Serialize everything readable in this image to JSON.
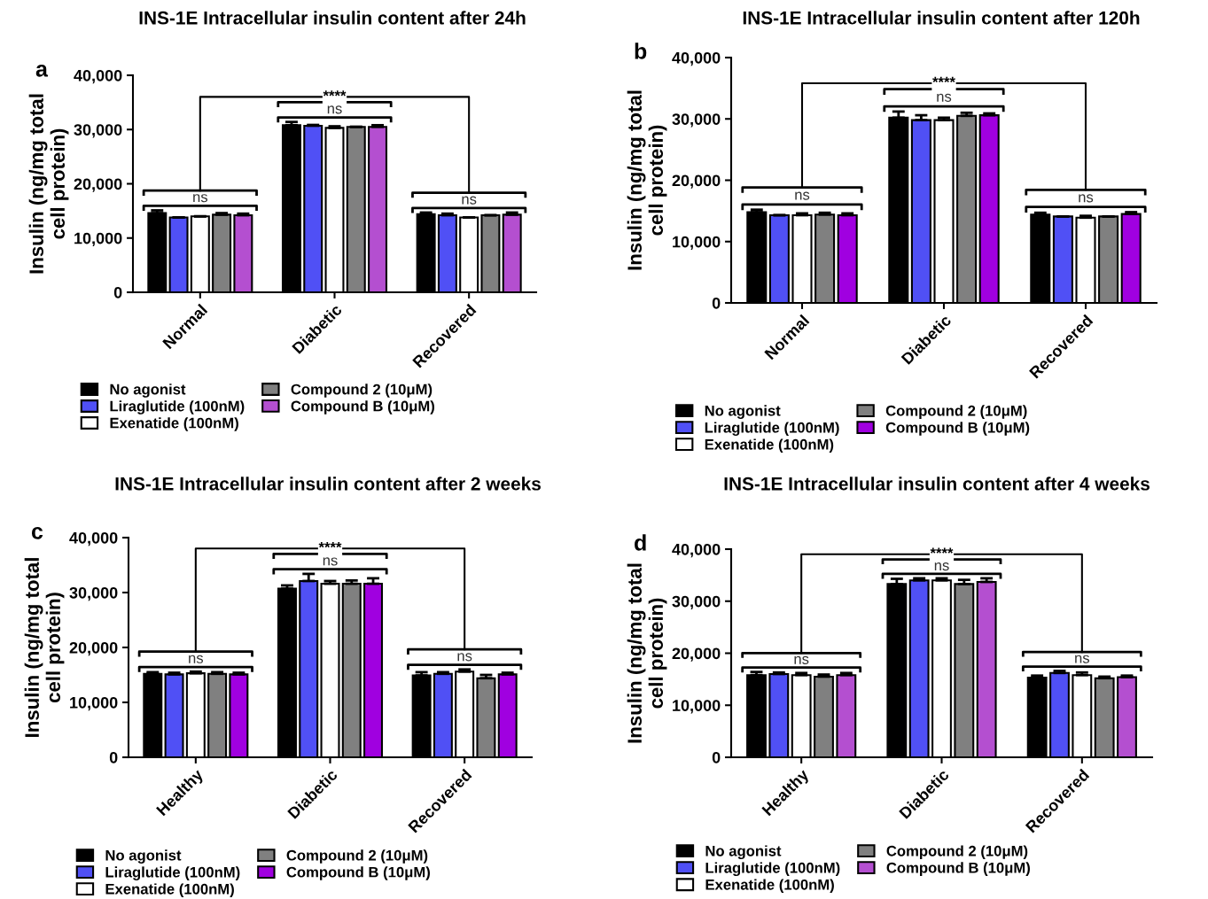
{
  "chart_data": [
    {
      "type": "bar",
      "title": "INS-1E Intracellular insulin content after 24h",
      "ylabel": "Insulin (ng/mg total\ncell protein)",
      "categories": [
        "Normal",
        "Diabetic",
        "Recovered"
      ],
      "ylim": [
        0,
        40000
      ],
      "yticks": [
        0,
        {
          "value": 10000,
          "label": "10,000"
        },
        {
          "value": 20000,
          "label": "20,000"
        },
        {
          "value": 30000,
          "label": "30,000"
        },
        {
          "value": 40000,
          "label": "40,000"
        }
      ],
      "legend": "bottom",
      "series": [
        {
          "name": "No agonist",
          "color": "#000000",
          "values": [
            14600,
            30800,
            14400
          ],
          "errors": [
            500,
            600,
            300
          ]
        },
        {
          "name": "Liraglutide (100nM)",
          "color": "#5050f5",
          "values": [
            13800,
            30700,
            14200
          ],
          "errors": [
            null,
            150,
            300
          ]
        },
        {
          "name": "Exenatide (100nM)",
          "color": "#ffffff",
          "values": [
            14000,
            30300,
            13800
          ],
          "errors": [
            null,
            300,
            null
          ]
        },
        {
          "name": "Compound 2 (10μM)",
          "color": "#808080",
          "values": [
            14300,
            30500,
            14200
          ],
          "errors": [
            300,
            null,
            null
          ]
        },
        {
          "name": "Compound B (10μM)",
          "color": "#b44fd0",
          "values": [
            14200,
            30500,
            14300
          ],
          "errors": [
            300,
            300,
            400
          ]
        }
      ],
      "annotations": [
        "a",
        "ns",
        "ns",
        "ns",
        "****"
      ]
    },
    {
      "type": "bar",
      "title": "INS-1E Intracellular insulin content after 120h",
      "ylabel": "Insulin (ng/mg total\ncell protein)",
      "categories": [
        "Normal",
        "Diabetic",
        "Recovered"
      ],
      "ylim": [
        0,
        40000
      ],
      "yticks": [
        0,
        {
          "value": 10000,
          "label": "10,000"
        },
        {
          "value": 20000,
          "label": "20,000"
        },
        {
          "value": 30000,
          "label": "30,000"
        },
        {
          "value": 40000,
          "label": "40,000"
        }
      ],
      "legend": "bottom",
      "series": [
        {
          "name": "No agonist",
          "color": "#000000",
          "values": [
            14800,
            30200,
            14400
          ],
          "errors": [
            400,
            1000,
            300
          ]
        },
        {
          "name": "Liraglutide (100nM)",
          "color": "#5050f5",
          "values": [
            14300,
            29800,
            14100
          ],
          "errors": [
            null,
            800,
            null
          ]
        },
        {
          "name": "Exenatide (100nM)",
          "color": "#ffffff",
          "values": [
            14300,
            29800,
            13900
          ],
          "errors": [
            300,
            400,
            300
          ]
        },
        {
          "name": "Compound 2 (10μM)",
          "color": "#808080",
          "values": [
            14400,
            30500,
            14100
          ],
          "errors": [
            300,
            500,
            null
          ]
        },
        {
          "name": "Compound B (10μM)",
          "color": "#a000e0",
          "values": [
            14300,
            30600,
            14500
          ],
          "errors": [
            300,
            300,
            300
          ]
        }
      ],
      "annotations": [
        "b",
        "ns",
        "ns",
        "ns",
        "****"
      ]
    },
    {
      "type": "bar",
      "title": "INS-1E Intracellular insulin content after 2 weeks",
      "ylabel": "Insulin (ng/mg total\ncell protein)",
      "categories": [
        "Healthy",
        "Diabetic",
        "Recovered"
      ],
      "ylim": [
        0,
        40000
      ],
      "yticks": [
        0,
        {
          "value": 10000,
          "label": "10,000"
        },
        {
          "value": 20000,
          "label": "20,000"
        },
        {
          "value": 30000,
          "label": "30,000"
        },
        {
          "value": 40000,
          "label": "40,000"
        }
      ],
      "legend": "bottom",
      "series": [
        {
          "name": "No agonist",
          "color": "#000000",
          "values": [
            15200,
            30700,
            14900
          ],
          "errors": [
            300,
            600,
            600
          ]
        },
        {
          "name": "Liraglutide (100nM)",
          "color": "#5050f5",
          "values": [
            15100,
            32100,
            15200
          ],
          "errors": [
            300,
            1300,
            300
          ]
        },
        {
          "name": "Exenatide (100nM)",
          "color": "#ffffff",
          "values": [
            15300,
            31600,
            15600
          ],
          "errors": [
            300,
            500,
            400
          ]
        },
        {
          "name": "Compound 2 (10μM)",
          "color": "#808080",
          "values": [
            15200,
            31600,
            14400
          ],
          "errors": [
            300,
            600,
            600
          ]
        },
        {
          "name": "Compound B (10μM)",
          "color": "#a000e0",
          "values": [
            15100,
            31600,
            15100
          ],
          "errors": [
            300,
            1000,
            300
          ]
        }
      ],
      "annotations": [
        "c",
        "ns",
        "ns",
        "ns",
        "****"
      ]
    },
    {
      "type": "bar",
      "title": "INS-1E Intracellular insulin content after 4 weeks",
      "ylabel": "Insulin (ng/mg total\ncell protein)",
      "categories": [
        "Healthy",
        "Diabetic",
        "Recovered"
      ],
      "ylim": [
        0,
        40000
      ],
      "yticks": [
        0,
        {
          "value": 10000,
          "label": "10,000"
        },
        {
          "value": 20000,
          "label": "20,000"
        },
        {
          "value": 30000,
          "label": "30,000"
        },
        {
          "value": 40000,
          "label": "40,000"
        }
      ],
      "legend": "bottom",
      "series": [
        {
          "name": "No agonist",
          "color": "#000000",
          "values": [
            15800,
            33300,
            15300
          ],
          "errors": [
            600,
            1000,
            400
          ]
        },
        {
          "name": "Liraglutide (100nM)",
          "color": "#5050f5",
          "values": [
            16000,
            34000,
            16200
          ],
          "errors": [
            300,
            400,
            400
          ]
        },
        {
          "name": "Exenatide (100nM)",
          "color": "#ffffff",
          "values": [
            15800,
            34000,
            15800
          ],
          "errors": [
            400,
            400,
            500
          ]
        },
        {
          "name": "Compound 2 (10μM)",
          "color": "#808080",
          "values": [
            15500,
            33300,
            15200
          ],
          "errors": [
            400,
            800,
            300
          ]
        },
        {
          "name": "Compound B (10μM)",
          "color": "#b44fd0",
          "values": [
            15800,
            33700,
            15400
          ],
          "errors": [
            400,
            700,
            300
          ]
        }
      ],
      "annotations": [
        "d",
        "ns",
        "ns",
        "ns",
        "****"
      ]
    }
  ]
}
